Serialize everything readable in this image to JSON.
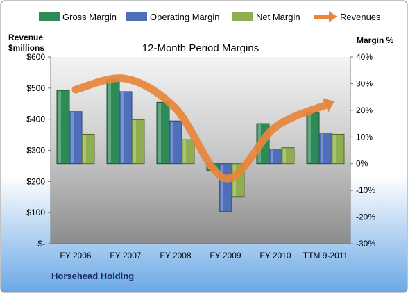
{
  "chart_data": {
    "type": "bar",
    "title": "12-Month Period Margins",
    "company_label": "Horsehead Holding",
    "categories": [
      "FY 2006",
      "FY 2007",
      "FY 2008",
      "FY 2009",
      "FY 2010",
      "TTM 9-2011"
    ],
    "left_axis": {
      "label_line1": "Revenue",
      "label_line2": "$millions",
      "range": [
        0,
        600
      ],
      "ticks": [
        0,
        100,
        200,
        300,
        400,
        500,
        600
      ],
      "tick_labels": [
        "$-",
        "$100",
        "$200",
        "$300",
        "$400",
        "$500",
        "$600"
      ]
    },
    "right_axis": {
      "label": "Margin %",
      "range": [
        -30,
        40
      ],
      "ticks": [
        -30,
        -20,
        -10,
        0,
        10,
        20,
        30,
        40
      ],
      "tick_labels": [
        "-30%",
        "-20%",
        "-10%",
        "0%",
        "10%",
        "20%",
        "30%",
        "40%"
      ]
    },
    "series": [
      {
        "name": "Gross Margin",
        "type": "bar",
        "axis": "right",
        "color": "#2E8B57",
        "values": [
          27.5,
          31.5,
          23.0,
          -2.5,
          15.0,
          19.0
        ]
      },
      {
        "name": "Operating Margin",
        "type": "bar",
        "axis": "right",
        "color": "#4F6FB8",
        "values": [
          19.5,
          27.0,
          16.0,
          -18.0,
          5.5,
          11.5
        ]
      },
      {
        "name": "Net Margin",
        "type": "bar",
        "axis": "right",
        "color": "#8FAE4F",
        "values": [
          11.0,
          16.5,
          9.0,
          -12.5,
          6.0,
          11.0
        ]
      },
      {
        "name": "Revenues",
        "type": "line",
        "axis": "left",
        "color": "#E8853A",
        "values": [
          495,
          530,
          435,
          210,
          375,
          445
        ]
      }
    ],
    "legend_position": "top",
    "grid": false
  }
}
